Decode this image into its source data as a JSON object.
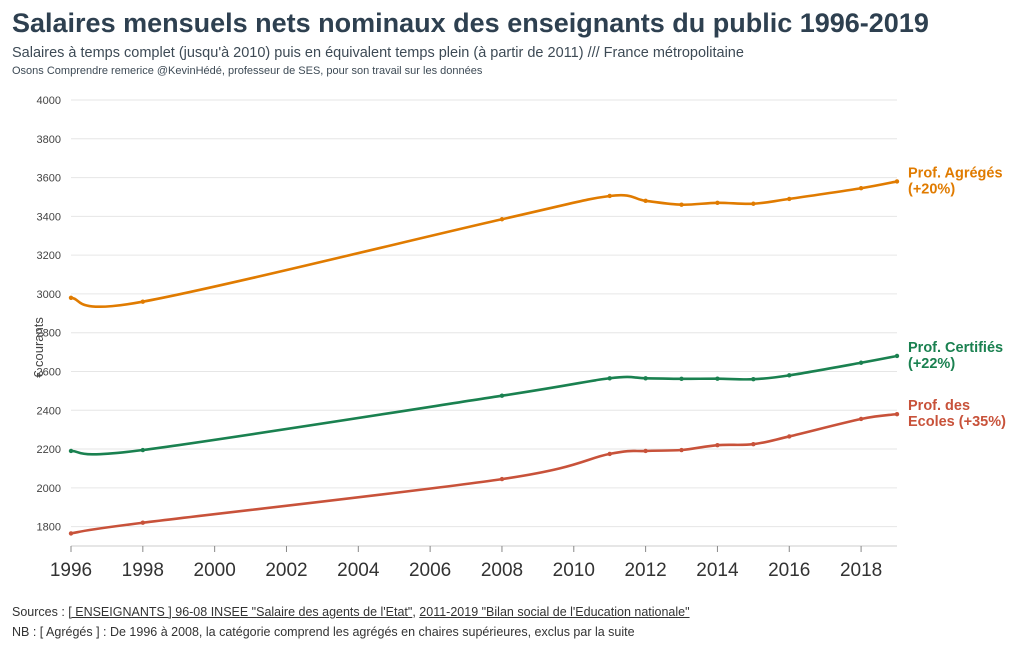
{
  "header": {
    "title": "Salaires mensuels nets nominaux des enseignants du public 1996-2019",
    "subtitle": "Salaires à temps complet (jusqu'à 2010) puis en équivalent temps plein (à partir de 2011) /// France métropolitaine",
    "credit": "Osons Comprendre remerice @KevinHédé, professeur de SES, pour son travail sur les données"
  },
  "footer": {
    "sources_prefix": "Sources : ",
    "source_link_1": "[ ENSEIGNANTS ] 96-08 INSEE \"Salaire des agents de l'Etat\"",
    "separator": ", ",
    "source_link_2": "2011-2019 \"Bilan social de l'Education nationale\"",
    "note": "NB : [ Agrégés ] : De 1996 à 2008, la catégorie comprend les agrégés en chaires supérieures, exclus par la suite"
  },
  "chart_data": {
    "type": "line",
    "title": "Salaires mensuels nets nominaux des enseignants du public 1996-2019",
    "xlabel": "",
    "ylabel": "€ courants",
    "xlim": [
      1996,
      2019
    ],
    "ylim": [
      1700,
      4000
    ],
    "x_ticks": [
      1996,
      1998,
      2000,
      2002,
      2004,
      2006,
      2008,
      2010,
      2012,
      2014,
      2016,
      2018
    ],
    "y_ticks": [
      1800,
      2000,
      2200,
      2400,
      2600,
      2800,
      3000,
      3200,
      3400,
      3600,
      3800,
      4000
    ],
    "grid": "horizontal",
    "series": [
      {
        "name": "Prof. Agrégés",
        "label_lines": [
          "Prof. Agrégés",
          "(+20%)"
        ],
        "color": "#e07b00",
        "x": [
          1996,
          1998,
          2008,
          2011,
          2012,
          2013,
          2014,
          2015,
          2016,
          2018,
          2019
        ],
        "values": [
          2980,
          2960,
          3385,
          3505,
          3480,
          3460,
          3470,
          3465,
          3490,
          3545,
          3580
        ]
      },
      {
        "name": "Prof. Certifiés",
        "label_lines": [
          "Prof. Certifiés",
          "(+22%)"
        ],
        "color": "#1a8150",
        "x": [
          1996,
          1998,
          2008,
          2011,
          2012,
          2013,
          2014,
          2015,
          2016,
          2018,
          2019
        ],
        "values": [
          2190,
          2195,
          2475,
          2565,
          2565,
          2562,
          2563,
          2560,
          2580,
          2645,
          2680
        ]
      },
      {
        "name": "Prof. des Ecoles",
        "label_lines": [
          "Prof. des",
          "Ecoles (+35%)"
        ],
        "color": "#c8523a",
        "x": [
          1996,
          1998,
          2008,
          2011,
          2012,
          2013,
          2014,
          2015,
          2016,
          2018,
          2019
        ],
        "values": [
          1765,
          1820,
          2045,
          2175,
          2190,
          2195,
          2220,
          2225,
          2265,
          2355,
          2380
        ]
      }
    ]
  }
}
